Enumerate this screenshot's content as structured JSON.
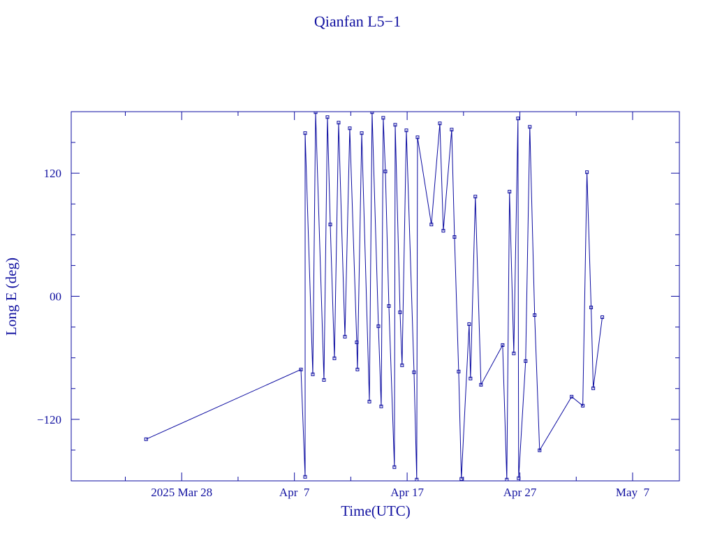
{
  "chart_data": {
    "type": "line",
    "title": "Qianfan L5−1",
    "x_label": "Time(UTC)",
    "y_label": "Long E (deg)",
    "color": "#0a0aa0",
    "xlim": [
      77.2,
      131.15
    ],
    "ylim": [
      -180,
      180
    ],
    "xticks": [
      {
        "value": 87,
        "label": "2025 Mar 28"
      },
      {
        "value": 97,
        "label": "Apr  7"
      },
      {
        "value": 107,
        "label": "Apr 17"
      },
      {
        "value": 117,
        "label": "Apr 27"
      },
      {
        "value": 127,
        "label": "May  7"
      }
    ],
    "xminor": [
      82,
      92,
      102,
      112,
      122
    ],
    "yticks": [
      {
        "value": -120,
        "label": "−120"
      },
      {
        "value": 0,
        "label": "00"
      },
      120
    ],
    "yminor": [
      -150,
      -90,
      -60,
      -30,
      30,
      60,
      90,
      150
    ],
    "x": [
      83.84,
      97.58,
      97.95,
      97.95,
      98.63,
      98.88,
      99.62,
      99.93,
      100.18,
      100.55,
      100.92,
      101.48,
      101.91,
      102.53,
      102.59,
      102.97,
      103.65,
      103.89,
      104.45,
      104.7,
      104.88,
      105.07,
      105.38,
      105.87,
      105.94,
      106.37,
      106.55,
      106.93,
      107.61,
      107.85,
      107.92,
      109.15,
      109.9,
      110.21,
      110.95,
      111.2,
      111.57,
      111.81,
      112.5,
      112.62,
      113.05,
      113.55,
      115.47,
      115.84,
      116.08,
      116.46,
      116.83,
      116.89,
      117.51,
      117.88,
      118.31,
      118.75,
      121.59,
      122.58,
      122.95,
      123.32,
      123.51,
      124.31
    ],
    "values": [
      -139.4,
      -71.4,
      -176.1,
      159.1,
      -76.1,
      179.5,
      -81.6,
      174.7,
      70.0,
      -60.5,
      169.3,
      -39.4,
      163.8,
      -44.9,
      -71.4,
      159.1,
      -102.7,
      179.5,
      -29.2,
      -107.4,
      174.0,
      121.7,
      -9.5,
      -166.6,
      167.2,
      -15.6,
      -67.3,
      161.8,
      -74.1,
      -178.8,
      155.0,
      70.0,
      168.6,
      63.9,
      162.5,
      57.8,
      -73.4,
      -178.1,
      -27.2,
      -80.2,
      97.2,
      -86.3,
      -47.6,
      -178.8,
      102.0,
      -55.7,
      173.4,
      -177.4,
      -63.2,
      165.2,
      -18.4,
      -150.2,
      -97.9,
      -106.7,
      121.0,
      -10.9,
      -89.7,
      -20.4
    ]
  }
}
